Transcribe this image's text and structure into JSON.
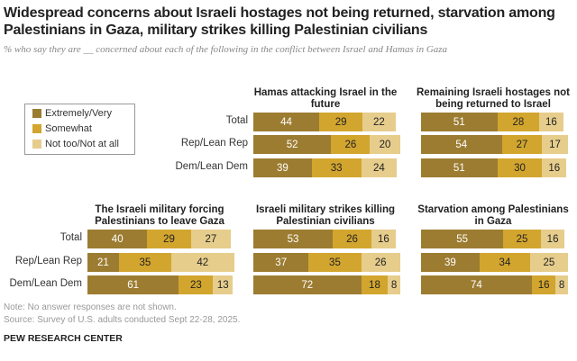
{
  "title": "Widespread concerns about Israeli hostages not being returned, starvation among Palestinians in Gaza, military strikes killing Palestinian civilians",
  "subtitle": "% who say they are __ concerned about each of the following in the conflict between Israel and Hamas in Gaza",
  "note": "Note: No answer responses are not shown.",
  "source": "Source: Survey of U.S. adults conducted Sept 22-28, 2025.",
  "logo": "PEW RESEARCH CENTER",
  "colors": {
    "Extremely/Very": "#9c7c31",
    "Somewhat": "#d2a52e",
    "Not too/Not at all": "#e6cd8c"
  },
  "chart_data": {
    "type": "bar",
    "stacked": true,
    "orientation": "horizontal",
    "legend": [
      "Extremely/Very",
      "Somewhat",
      "Not too/Not at all"
    ],
    "legend_placement": "left",
    "categories": [
      "Total",
      "Rep/Lean Rep",
      "Dem/Lean Dem"
    ],
    "panels": [
      {
        "title": "Hamas attacking Israel in the future",
        "values": [
          [
            44,
            29,
            22
          ],
          [
            52,
            26,
            20
          ],
          [
            39,
            33,
            24
          ]
        ]
      },
      {
        "title": "Remaining Israeli hostages not being returned to Israel",
        "values": [
          [
            51,
            28,
            16
          ],
          [
            54,
            27,
            17
          ],
          [
            51,
            30,
            16
          ]
        ]
      },
      {
        "title": "The Israeli military forcing Palestinians to leave Gaza",
        "values": [
          [
            40,
            29,
            27
          ],
          [
            21,
            35,
            42
          ],
          [
            61,
            23,
            13
          ]
        ]
      },
      {
        "title": "Israeli military strikes killing Palestinian civilians",
        "values": [
          [
            53,
            26,
            16
          ],
          [
            37,
            35,
            26
          ],
          [
            72,
            18,
            8
          ]
        ]
      },
      {
        "title": "Starvation among Palestinians in Gaza",
        "values": [
          [
            55,
            25,
            16
          ],
          [
            39,
            34,
            25
          ],
          [
            74,
            16,
            8
          ]
        ]
      }
    ]
  }
}
